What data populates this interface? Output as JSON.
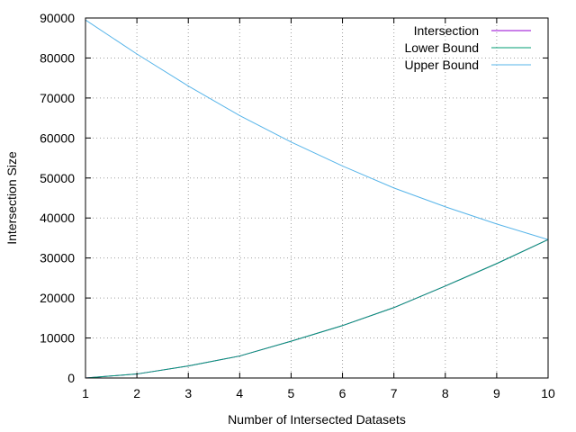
{
  "chart_data": {
    "type": "line",
    "xlabel": "Number of Intersected Datasets",
    "ylabel": "Intersection Size",
    "xlim": [
      1,
      10
    ],
    "ylim": [
      0,
      90000
    ],
    "x_ticks": [
      "1",
      "2",
      "3",
      "4",
      "5",
      "6",
      "7",
      "8",
      "9",
      "10"
    ],
    "y_ticks": [
      "0",
      "10000",
      "20000",
      "30000",
      "40000",
      "50000",
      "60000",
      "70000",
      "80000",
      "90000"
    ],
    "grid": true,
    "legend_position": "top-right",
    "x": [
      1,
      2,
      3,
      4,
      5,
      6,
      7,
      8,
      9,
      10
    ],
    "series": [
      {
        "name": "Intersection",
        "color": "#9400d3",
        "values": [
          0,
          1000,
          3000,
          5500,
          9200,
          13100,
          17600,
          23000,
          28600,
          34600
        ]
      },
      {
        "name": "Lower Bound",
        "color": "#009e73",
        "values": [
          0,
          1000,
          3000,
          5500,
          9200,
          13100,
          17600,
          23000,
          28600,
          34600
        ]
      },
      {
        "name": "Upper Bound",
        "color": "#56b4e9",
        "values": [
          89500,
          81000,
          73000,
          65600,
          59000,
          53000,
          47500,
          42800,
          38500,
          34600
        ]
      }
    ]
  }
}
